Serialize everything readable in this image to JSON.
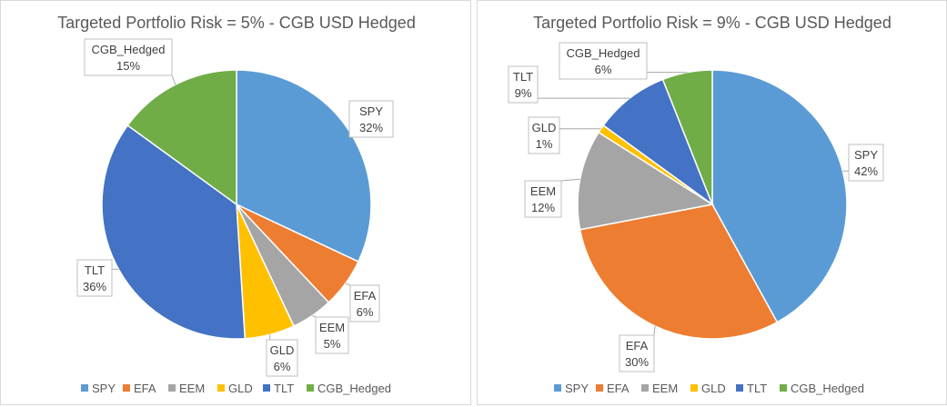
{
  "chart_data": [
    {
      "type": "pie",
      "title": "Targeted Portfolio Risk = 5% - CGB USD Hedged",
      "categories": [
        "SPY",
        "EFA",
        "EEM",
        "GLD",
        "TLT",
        "CGB_Hedged"
      ],
      "values": [
        32,
        6,
        5,
        6,
        36,
        15
      ],
      "data_labels": [
        {
          "category": "SPY",
          "percent": "32%"
        },
        {
          "category": "EFA",
          "percent": "6%"
        },
        {
          "category": "EEM",
          "percent": "5%"
        },
        {
          "category": "GLD",
          "percent": "6%"
        },
        {
          "category": "TLT",
          "percent": "36%"
        },
        {
          "category": "CGB_Hedged",
          "percent": "15%"
        }
      ],
      "legend": [
        "SPY",
        "EFA",
        "EEM",
        "GLD",
        "TLT",
        "CGB_Hedged"
      ],
      "legend_position": "bottom"
    },
    {
      "type": "pie",
      "title": "Targeted Portfolio Risk = 9% - CGB USD Hedged",
      "categories": [
        "SPY",
        "EFA",
        "EEM",
        "GLD",
        "TLT",
        "CGB_Hedged"
      ],
      "values": [
        42,
        30,
        12,
        1,
        9,
        6
      ],
      "data_labels": [
        {
          "category": "SPY",
          "percent": "42%"
        },
        {
          "category": "EFA",
          "percent": "30%"
        },
        {
          "category": "EEM",
          "percent": "12%"
        },
        {
          "category": "GLD",
          "percent": "1%"
        },
        {
          "category": "TLT",
          "percent": "9%"
        },
        {
          "category": "CGB_Hedged",
          "percent": "6%"
        }
      ],
      "legend": [
        "SPY",
        "EFA",
        "EEM",
        "GLD",
        "TLT",
        "CGB_Hedged"
      ],
      "legend_position": "bottom"
    }
  ],
  "colors": [
    "#5b9bd5",
    "#ed7d31",
    "#a5a5a5",
    "#ffc000",
    "#4472c4",
    "#70ad47"
  ]
}
